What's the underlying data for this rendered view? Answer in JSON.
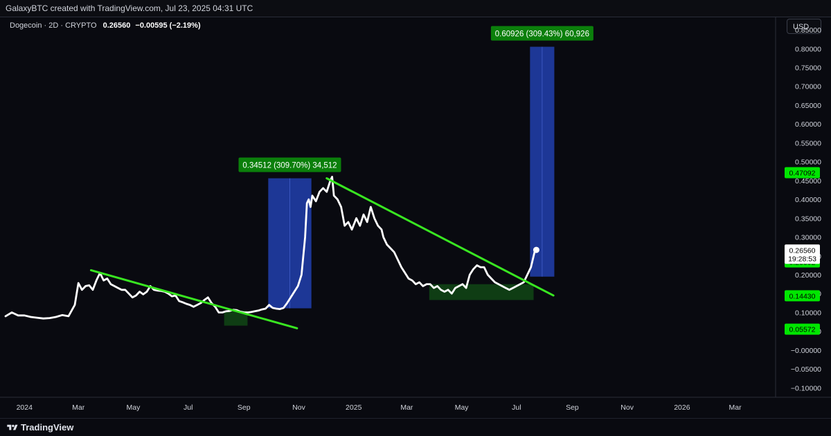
{
  "header": {
    "attribution": "GalaxyBTC created with TradingView.com, Jul 23, 2025 04:31 UTC"
  },
  "legend": {
    "symbol": "Dogecoin · 2D · CRYPTO",
    "last": "0.26560",
    "change": "−0.00595 (−2.19%)"
  },
  "currency_button": "USD",
  "footer": {
    "brand": "TradingView"
  },
  "colors": {
    "background": "#090a10",
    "price_line": "#ffffff",
    "trendline": "#39e621",
    "projection_box": "#1f3a9e",
    "accumulation_box": "#0f3d14",
    "label_green": "#0b7f0b",
    "price_tag": "#00e600"
  },
  "chart_data": {
    "type": "line",
    "title": "",
    "x_ticks": [
      "2024",
      "Mar",
      "May",
      "Jul",
      "Sep",
      "Nov",
      "2025",
      "Mar",
      "May",
      "Jul",
      "Sep",
      "Nov",
      "2026",
      "Mar"
    ],
    "y_ticks": [
      "0.85000",
      "0.80000",
      "0.75000",
      "0.70000",
      "0.65000",
      "0.60000",
      "0.55000",
      "0.50000",
      "0.45000",
      "0.40000",
      "0.35000",
      "0.30000",
      "0.25000",
      "0.20000",
      "0.15000",
      "0.10000",
      "0.05000",
      "−0.00000",
      "−0.05000",
      "−0.10000"
    ],
    "ylim": [
      -0.125,
      0.885
    ],
    "xlim": [
      "2023-12-11",
      "2026-04-15"
    ],
    "price_tags": [
      {
        "value": 0.47092,
        "label": "0.47092",
        "style": "green"
      },
      {
        "value": 0.23392,
        "label": "0.23392",
        "style": "green"
      },
      {
        "value": 0.1443,
        "label": "0.14430",
        "style": "green"
      },
      {
        "value": 0.05572,
        "label": "0.05572",
        "style": "green"
      }
    ],
    "last_price": {
      "label": "0.26560",
      "countdown": "19:28:53",
      "value": 0.2656
    },
    "series": [
      {
        "x": [
          "2023-12-11",
          "2023-12-18",
          "2023-12-25",
          "2024-01-01",
          "2024-01-08",
          "2024-01-15",
          "2024-01-22",
          "2024-01-29",
          "2024-02-05",
          "2024-02-12",
          "2024-02-19",
          "2024-02-26",
          "2024-03-01",
          "2024-03-05",
          "2024-03-09",
          "2024-03-13",
          "2024-03-17",
          "2024-03-21",
          "2024-03-25",
          "2024-03-29",
          "2024-04-02",
          "2024-04-06",
          "2024-04-10",
          "2024-04-14",
          "2024-04-18",
          "2024-04-22",
          "2024-04-26",
          "2024-04-30",
          "2024-05-04",
          "2024-05-08",
          "2024-05-12",
          "2024-05-16",
          "2024-05-20",
          "2024-05-24",
          "2024-05-28",
          "2024-06-01",
          "2024-06-05",
          "2024-06-09",
          "2024-06-13",
          "2024-06-17",
          "2024-06-21",
          "2024-06-25",
          "2024-06-29",
          "2024-07-03",
          "2024-07-07",
          "2024-07-11",
          "2024-07-15",
          "2024-07-19",
          "2024-07-23",
          "2024-07-27",
          "2024-07-31",
          "2024-08-04",
          "2024-08-08",
          "2024-08-12",
          "2024-08-16",
          "2024-08-20",
          "2024-08-24",
          "2024-08-28",
          "2024-09-01",
          "2024-09-05",
          "2024-09-09",
          "2024-09-13",
          "2024-09-17",
          "2024-09-21",
          "2024-09-25",
          "2024-09-29",
          "2024-10-03",
          "2024-10-07",
          "2024-10-11",
          "2024-10-15",
          "2024-10-19",
          "2024-10-23",
          "2024-10-27",
          "2024-10-31",
          "2024-11-04",
          "2024-11-08",
          "2024-11-10",
          "2024-11-12",
          "2024-11-14",
          "2024-11-16",
          "2024-11-20",
          "2024-11-24",
          "2024-11-28",
          "2024-12-02",
          "2024-12-06",
          "2024-12-08",
          "2024-12-10",
          "2024-12-14",
          "2024-12-18",
          "2024-12-22",
          "2024-12-26",
          "2024-12-30",
          "2025-01-04",
          "2025-01-08",
          "2025-01-12",
          "2025-01-16",
          "2025-01-20",
          "2025-01-24",
          "2025-01-28",
          "2025-02-01",
          "2025-02-03",
          "2025-02-07",
          "2025-02-11",
          "2025-02-15",
          "2025-02-19",
          "2025-02-23",
          "2025-02-27",
          "2025-03-03",
          "2025-03-07",
          "2025-03-11",
          "2025-03-15",
          "2025-03-19",
          "2025-03-23",
          "2025-03-27",
          "2025-03-31",
          "2025-04-04",
          "2025-04-08",
          "2025-04-12",
          "2025-04-16",
          "2025-04-20",
          "2025-04-24",
          "2025-04-28",
          "2025-05-02",
          "2025-05-06",
          "2025-05-10",
          "2025-05-14",
          "2025-05-18",
          "2025-05-22",
          "2025-05-26",
          "2025-05-30",
          "2025-06-03",
          "2025-06-07",
          "2025-06-11",
          "2025-06-15",
          "2025-06-19",
          "2025-06-23",
          "2025-06-27",
          "2025-07-01",
          "2025-07-05",
          "2025-07-09",
          "2025-07-13",
          "2025-07-17",
          "2025-07-21",
          "2025-07-23"
        ],
        "values": [
          0.09,
          0.1,
          0.092,
          0.092,
          0.088,
          0.086,
          0.084,
          0.085,
          0.088,
          0.093,
          0.09,
          0.12,
          0.178,
          0.16,
          0.17,
          0.172,
          0.16,
          0.185,
          0.205,
          0.185,
          0.19,
          0.175,
          0.17,
          0.165,
          0.16,
          0.16,
          0.15,
          0.14,
          0.145,
          0.155,
          0.148,
          0.155,
          0.17,
          0.16,
          0.158,
          0.157,
          0.155,
          0.15,
          0.143,
          0.145,
          0.13,
          0.127,
          0.123,
          0.12,
          0.115,
          0.12,
          0.125,
          0.133,
          0.14,
          0.125,
          0.115,
          0.1,
          0.1,
          0.103,
          0.104,
          0.107,
          0.106,
          0.102,
          0.1,
          0.1,
          0.101,
          0.103,
          0.105,
          0.108,
          0.11,
          0.12,
          0.112,
          0.11,
          0.109,
          0.112,
          0.125,
          0.14,
          0.155,
          0.17,
          0.2,
          0.3,
          0.39,
          0.4,
          0.38,
          0.41,
          0.395,
          0.42,
          0.43,
          0.42,
          0.45,
          0.46,
          0.41,
          0.4,
          0.38,
          0.33,
          0.34,
          0.32,
          0.35,
          0.33,
          0.36,
          0.34,
          0.38,
          0.35,
          0.33,
          0.32,
          0.3,
          0.28,
          0.27,
          0.26,
          0.24,
          0.22,
          0.205,
          0.19,
          0.185,
          0.175,
          0.18,
          0.17,
          0.175,
          0.175,
          0.165,
          0.17,
          0.16,
          0.155,
          0.16,
          0.15,
          0.165,
          0.17,
          0.175,
          0.165,
          0.2,
          0.215,
          0.225,
          0.22,
          0.22,
          0.2,
          0.19,
          0.18,
          0.175,
          0.17,
          0.165,
          0.16,
          0.165,
          0.17,
          0.175,
          0.18,
          0.2,
          0.22,
          0.26,
          0.266
        ]
      }
    ],
    "annotations": [
      {
        "type": "trendline",
        "x": [
          "2024-03-15",
          "2024-10-30"
        ],
        "y": [
          0.212,
          0.058
        ]
      },
      {
        "type": "trendline",
        "x": [
          "2024-12-02",
          "2025-08-11"
        ],
        "y": [
          0.456,
          0.145
        ]
      },
      {
        "type": "range-box",
        "x": [
          "2024-08-10",
          "2024-09-05"
        ],
        "y": [
          0.105,
          0.065
        ],
        "style": "accumulation"
      },
      {
        "type": "range-box",
        "x": [
          "2025-03-26",
          "2025-07-20"
        ],
        "y": [
          0.175,
          0.133
        ],
        "style": "accumulation"
      },
      {
        "type": "range-box",
        "x": [
          "2024-09-28",
          "2024-11-15"
        ],
        "y": [
          0.456,
          0.111
        ],
        "style": "projection",
        "label": "0.34512 (309.70%) 34,512"
      },
      {
        "type": "range-box",
        "x": [
          "2025-07-16",
          "2025-08-12"
        ],
        "y": [
          0.805,
          0.195
        ],
        "style": "projection",
        "label": "0.60926 (309.43%) 60,926"
      }
    ]
  }
}
